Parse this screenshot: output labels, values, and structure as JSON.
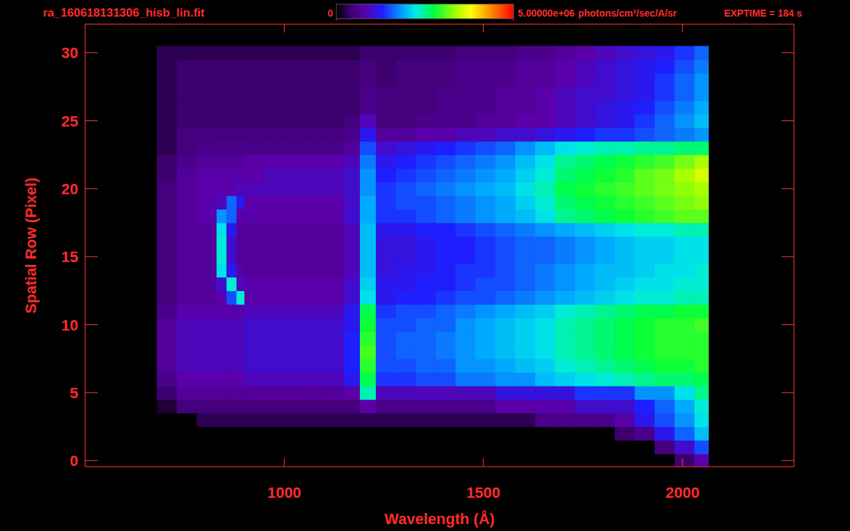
{
  "chart_data": {
    "type": "heatmap",
    "title": "ra_160618131306_hisb_lin.fit",
    "x_label": "Wavelength (Å)",
    "y_label": "Spatial Row (Pixel)",
    "annotations": [
      "EXPTIME = 184 s"
    ],
    "xlim": [
      500,
      2280
    ],
    "ylim": [
      -0.45,
      32.1
    ],
    "xticks": [
      1000,
      1500,
      2000
    ],
    "yticks": [
      0,
      5,
      10,
      15,
      20,
      25,
      30
    ],
    "colorbar": {
      "range": [
        0,
        5000000
      ],
      "ticks": [
        0,
        {
          "value": 5000000,
          "label": "5.00000e+06"
        }
      ],
      "label": "photons/cm²/sec/A/sr"
    },
    "x_bins": [
      680,
      730,
      780,
      830,
      855,
      880,
      900,
      950,
      1000,
      1050,
      1100,
      1150,
      1190,
      1230,
      1280,
      1330,
      1380,
      1430,
      1480,
      1530,
      1580,
      1630,
      1680,
      1730,
      1780,
      1830,
      1880,
      1930,
      1980,
      2030,
      2065
    ],
    "y": [
      0,
      1,
      2,
      3,
      4,
      5,
      6,
      7,
      8,
      9,
      10,
      11,
      12,
      13,
      14,
      15,
      16,
      17,
      18,
      19,
      20,
      21,
      22,
      23,
      24,
      25,
      26,
      27,
      28,
      29,
      30
    ],
    "cells": [
      [
        0,
        0,
        0,
        0,
        0,
        0,
        0,
        0,
        0,
        0,
        0,
        0,
        0,
        0,
        0,
        0,
        0,
        0,
        0,
        0,
        0,
        0,
        0,
        0,
        0,
        0,
        0,
        0,
        400000.0,
        800000.0
      ],
      [
        0,
        0,
        0,
        0,
        0,
        0,
        0,
        0,
        0,
        0,
        0,
        0,
        0,
        0,
        0,
        0,
        0,
        0,
        0,
        0,
        0,
        0,
        0,
        0,
        0,
        0,
        0,
        500000.0,
        1000000.0,
        1500000.0
      ],
      [
        0,
        0,
        0,
        0,
        0,
        0,
        0,
        0,
        0,
        0,
        0,
        0,
        0,
        0,
        0,
        0,
        0,
        0,
        0,
        0,
        0,
        0,
        0,
        0,
        0,
        400000.0,
        600000.0,
        1200000.0,
        1600000.0,
        2000000.0
      ],
      [
        0,
        0,
        300000.0,
        300000.0,
        300000.0,
        300000.0,
        300000.0,
        300000.0,
        300000.0,
        300000.0,
        300000.0,
        300000.0,
        300000.0,
        300000.0,
        300000.0,
        300000.0,
        300000.0,
        300000.0,
        300000.0,
        300000.0,
        300000.0,
        600000.0,
        600000.0,
        600000.0,
        600000.0,
        800000.0,
        1200000.0,
        1500000.0,
        1800000.0,
        2200000.0
      ],
      [
        200000.0,
        500000.0,
        500000.0,
        500000.0,
        500000.0,
        500000.0,
        500000.0,
        500000.0,
        500000.0,
        500000.0,
        500000.0,
        500000.0,
        800000.0,
        600000.0,
        600000.0,
        600000.0,
        600000.0,
        600000.0,
        600000.0,
        800000.0,
        800000.0,
        800000.0,
        800000.0,
        1000000.0,
        1000000.0,
        1000000.0,
        1300000.0,
        1600000.0,
        1900000.0,
        2300000.0
      ],
      [
        400000.0,
        700000.0,
        700000.0,
        700000.0,
        700000.0,
        700000.0,
        700000.0,
        700000.0,
        700000.0,
        700000.0,
        700000.0,
        800000.0,
        2400000.0,
        900000.0,
        900000.0,
        900000.0,
        900000.0,
        900000.0,
        900000.0,
        1100000.0,
        1100000.0,
        1100000.0,
        1100000.0,
        1400000.0,
        1400000.0,
        1400000.0,
        1800000.0,
        1800000.0,
        2200000.0,
        2500000.0
      ],
      [
        600000.0,
        800000.0,
        800000.0,
        800000.0,
        800000.0,
        800000.0,
        900000.0,
        900000.0,
        900000.0,
        900000.0,
        900000.0,
        1200000.0,
        2700000.0,
        1400000.0,
        1400000.0,
        1500000.0,
        1500000.0,
        1700000.0,
        1700000.0,
        1800000.0,
        1800000.0,
        2000000.0,
        2100000.0,
        2200000.0,
        2300000.0,
        2400000.0,
        2500000.0,
        2600000.0,
        2600000.0,
        2700000.0
      ],
      [
        700000.0,
        900000.0,
        900000.0,
        900000.0,
        900000.0,
        900000.0,
        1000000.0,
        1000000.0,
        1000000.0,
        1000000.0,
        1000000.0,
        1300000.0,
        2900000.0,
        1500000.0,
        1500000.0,
        1600000.0,
        1600000.0,
        1800000.0,
        1800000.0,
        1900000.0,
        2000000.0,
        2100000.0,
        2300000.0,
        2400000.0,
        2500000.0,
        2600000.0,
        2700000.0,
        2800000.0,
        2800000.0,
        2900000.0
      ],
      [
        700000.0,
        900000.0,
        900000.0,
        900000.0,
        900000.0,
        900000.0,
        1000000.0,
        1000000.0,
        1000000.0,
        1000000.0,
        1000000.0,
        1300000.0,
        3000000.0,
        1500000.0,
        1600000.0,
        1600000.0,
        1700000.0,
        1800000.0,
        1900000.0,
        2000000.0,
        2100000.0,
        2200000.0,
        2400000.0,
        2500000.0,
        2600000.0,
        2700000.0,
        2800000.0,
        2900000.0,
        2900000.0,
        2900000.0
      ],
      [
        700000.0,
        900000.0,
        900000.0,
        900000.0,
        900000.0,
        900000.0,
        1000000.0,
        1000000.0,
        1000000.0,
        1000000.0,
        1000000.0,
        1300000.0,
        2900000.0,
        1500000.0,
        1600000.0,
        1600000.0,
        1700000.0,
        1800000.0,
        1900000.0,
        2000000.0,
        2100000.0,
        2200000.0,
        2400000.0,
        2500000.0,
        2600000.0,
        2700000.0,
        2800000.0,
        2900000.0,
        2900000.0,
        2900000.0
      ],
      [
        700000.0,
        900000.0,
        900000.0,
        900000.0,
        900000.0,
        900000.0,
        1000000.0,
        1000000.0,
        1000000.0,
        1000000.0,
        1000000.0,
        1200000.0,
        2800000.0,
        1500000.0,
        1500000.0,
        1600000.0,
        1600000.0,
        1800000.0,
        1900000.0,
        2000000.0,
        2100000.0,
        2200000.0,
        2400000.0,
        2500000.0,
        2600000.0,
        2700000.0,
        2800000.0,
        2900000.0,
        2900000.0,
        3000000.0
      ],
      [
        600000.0,
        800000.0,
        800000.0,
        800000.0,
        800000.0,
        800000.0,
        900000.0,
        900000.0,
        900000.0,
        900000.0,
        900000.0,
        1200000.0,
        2700000.0,
        1400000.0,
        1500000.0,
        1500000.0,
        1600000.0,
        1700000.0,
        1800000.0,
        1900000.0,
        2000000.0,
        2100000.0,
        2300000.0,
        2400000.0,
        2500000.0,
        2600000.0,
        2700000.0,
        2700000.0,
        2800000.0,
        2800000.0
      ],
      [
        500000.0,
        700000.0,
        700000.0,
        800000.0,
        1500000.0,
        2300000.0,
        800000.0,
        800000.0,
        800000.0,
        800000.0,
        800000.0,
        1000000.0,
        2200000.0,
        1200000.0,
        1300000.0,
        1300000.0,
        1400000.0,
        1500000.0,
        1500000.0,
        1600000.0,
        1700000.0,
        1800000.0,
        1900000.0,
        2000000.0,
        2100000.0,
        2200000.0,
        2300000.0,
        2300000.0,
        2400000.0,
        2400000.0
      ],
      [
        500000.0,
        700000.0,
        700000.0,
        1000000.0,
        2300000.0,
        900000.0,
        800000.0,
        800000.0,
        800000.0,
        800000.0,
        800000.0,
        1000000.0,
        2100000.0,
        1200000.0,
        1200000.0,
        1300000.0,
        1300000.0,
        1400000.0,
        1500000.0,
        1500000.0,
        1600000.0,
        1700000.0,
        1800000.0,
        1900000.0,
        2000000.0,
        2100000.0,
        2200000.0,
        2200000.0,
        2300000.0,
        2300000.0
      ],
      [
        500000.0,
        700000.0,
        700000.0,
        2200000.0,
        1200000.0,
        800000.0,
        700000.0,
        700000.0,
        700000.0,
        700000.0,
        700000.0,
        900000.0,
        2000000.0,
        1100000.0,
        1200000.0,
        1200000.0,
        1300000.0,
        1400000.0,
        1400000.0,
        1500000.0,
        1600000.0,
        1700000.0,
        1800000.0,
        1900000.0,
        2000000.0,
        2000000.0,
        2100000.0,
        2200000.0,
        2200000.0,
        2300000.0
      ],
      [
        500000.0,
        700000.0,
        700000.0,
        2300000.0,
        1000000.0,
        700000.0,
        700000.0,
        700000.0,
        700000.0,
        700000.0,
        700000.0,
        900000.0,
        2000000.0,
        1100000.0,
        1100000.0,
        1200000.0,
        1300000.0,
        1300000.0,
        1400000.0,
        1500000.0,
        1600000.0,
        1600000.0,
        1700000.0,
        1800000.0,
        1900000.0,
        2000000.0,
        2100000.0,
        2100000.0,
        2200000.0,
        2200000.0
      ],
      [
        500000.0,
        700000.0,
        700000.0,
        2300000.0,
        1000000.0,
        700000.0,
        700000.0,
        700000.0,
        700000.0,
        700000.0,
        700000.0,
        900000.0,
        2000000.0,
        1100000.0,
        1100000.0,
        1200000.0,
        1300000.0,
        1300000.0,
        1400000.0,
        1500000.0,
        1600000.0,
        1600000.0,
        1700000.0,
        1800000.0,
        1900000.0,
        2000000.0,
        2100000.0,
        2100000.0,
        2200000.0,
        2200000.0
      ],
      [
        500000.0,
        700000.0,
        700000.0,
        2200000.0,
        1200000.0,
        700000.0,
        700000.0,
        700000.0,
        700000.0,
        700000.0,
        700000.0,
        900000.0,
        2000000.0,
        1200000.0,
        1200000.0,
        1300000.0,
        1300000.0,
        1400000.0,
        1500000.0,
        1600000.0,
        1700000.0,
        1800000.0,
        1900000.0,
        2000000.0,
        2100000.0,
        2200000.0,
        2300000.0,
        2300000.0,
        2400000.0,
        2400000.0
      ],
      [
        500000.0,
        700000.0,
        800000.0,
        1800000.0,
        1600000.0,
        800000.0,
        800000.0,
        800000.0,
        800000.0,
        800000.0,
        800000.0,
        1000000.0,
        1900000.0,
        1400000.0,
        1400000.0,
        1500000.0,
        1600000.0,
        1700000.0,
        1800000.0,
        1900000.0,
        2000000.0,
        2200000.0,
        2500000.0,
        2600000.0,
        2700000.0,
        2800000.0,
        2900000.0,
        3000000.0,
        3100000.0,
        3100000.0
      ],
      [
        500000.0,
        700000.0,
        800000.0,
        900000.0,
        1600000.0,
        1200000.0,
        800000.0,
        800000.0,
        800000.0,
        800000.0,
        800000.0,
        1000000.0,
        1900000.0,
        1400000.0,
        1500000.0,
        1500000.0,
        1600000.0,
        1700000.0,
        1800000.0,
        1900000.0,
        2100000.0,
        2300000.0,
        2600000.0,
        2700000.0,
        2800000.0,
        2900000.0,
        3000000.0,
        3100000.0,
        3200000.0,
        3300000.0
      ],
      [
        500000.0,
        700000.0,
        800000.0,
        800000.0,
        800000.0,
        900000.0,
        900000.0,
        900000.0,
        900000.0,
        900000.0,
        900000.0,
        1000000.0,
        1800000.0,
        1400000.0,
        1500000.0,
        1600000.0,
        1700000.0,
        1800000.0,
        1900000.0,
        2000000.0,
        2200000.0,
        2400000.0,
        2700000.0,
        2800000.0,
        2900000.0,
        3000000.0,
        3100000.0,
        3200000.0,
        3300000.0,
        3400000.0
      ],
      [
        400000.0,
        700000.0,
        800000.0,
        800000.0,
        800000.0,
        800000.0,
        800000.0,
        900000.0,
        900000.0,
        900000.0,
        900000.0,
        1000000.0,
        1800000.0,
        1300000.0,
        1400000.0,
        1500000.0,
        1600000.0,
        1700000.0,
        1800000.0,
        1900000.0,
        2100000.0,
        2300000.0,
        2600000.0,
        2700000.0,
        2800000.0,
        2900000.0,
        3100000.0,
        3200000.0,
        3400000.0,
        3600000.0
      ],
      [
        400000.0,
        600000.0,
        700000.0,
        700000.0,
        700000.0,
        700000.0,
        800000.0,
        800000.0,
        800000.0,
        800000.0,
        800000.0,
        900000.0,
        1700000.0,
        1200000.0,
        1300000.0,
        1400000.0,
        1500000.0,
        1600000.0,
        1700000.0,
        1800000.0,
        2000000.0,
        2200000.0,
        2500000.0,
        2600000.0,
        2700000.0,
        2800000.0,
        2900000.0,
        3000000.0,
        3200000.0,
        3400000.0
      ],
      [
        300000.0,
        500000.0,
        600000.0,
        600000.0,
        600000.0,
        600000.0,
        600000.0,
        600000.0,
        600000.0,
        600000.0,
        600000.0,
        700000.0,
        1500000.0,
        1000000.0,
        1100000.0,
        1200000.0,
        1300000.0,
        1400000.0,
        1500000.0,
        1600000.0,
        1800000.0,
        2000000.0,
        2200000.0,
        2300000.0,
        2400000.0,
        2400000.0,
        2500000.0,
        2500000.0,
        2600000.0,
        2600000.0
      ],
      [
        300000.0,
        500000.0,
        500000.0,
        500000.0,
        500000.0,
        500000.0,
        500000.0,
        500000.0,
        500000.0,
        500000.0,
        500000.0,
        600000.0,
        1200000.0,
        700000.0,
        700000.0,
        800000.0,
        800000.0,
        900000.0,
        900000.0,
        1000000.0,
        1000000.0,
        1100000.0,
        1200000.0,
        1300000.0,
        1400000.0,
        1400000.0,
        1500000.0,
        1600000.0,
        1700000.0,
        1800000.0
      ],
      [
        300000.0,
        400000.0,
        400000.0,
        400000.0,
        400000.0,
        400000.0,
        400000.0,
        400000.0,
        400000.0,
        400000.0,
        400000.0,
        500000.0,
        900000.0,
        500000.0,
        500000.0,
        600000.0,
        600000.0,
        600000.0,
        700000.0,
        700000.0,
        800000.0,
        800000.0,
        900000.0,
        1000000.0,
        1100000.0,
        1200000.0,
        1400000.0,
        1600000.0,
        1800000.0,
        2000000.0
      ],
      [
        300000.0,
        400000.0,
        400000.0,
        400000.0,
        400000.0,
        400000.0,
        400000.0,
        400000.0,
        400000.0,
        400000.0,
        400000.0,
        400000.0,
        600000.0,
        500000.0,
        500000.0,
        500000.0,
        600000.0,
        600000.0,
        600000.0,
        700000.0,
        700000.0,
        800000.0,
        900000.0,
        1000000.0,
        1100000.0,
        1200000.0,
        1300000.0,
        1500000.0,
        1700000.0,
        1900000.0
      ],
      [
        300000.0,
        400000.0,
        400000.0,
        400000.0,
        400000.0,
        400000.0,
        400000.0,
        400000.0,
        400000.0,
        400000.0,
        400000.0,
        400000.0,
        600000.0,
        500000.0,
        500000.0,
        500000.0,
        600000.0,
        600000.0,
        600000.0,
        700000.0,
        700000.0,
        800000.0,
        900000.0,
        1000000.0,
        1000000.0,
        1100000.0,
        1200000.0,
        1400000.0,
        1600000.0,
        1800000.0
      ],
      [
        300000.0,
        400000.0,
        400000.0,
        400000.0,
        400000.0,
        400000.0,
        400000.0,
        400000.0,
        400000.0,
        400000.0,
        400000.0,
        400000.0,
        500000.0,
        400000.0,
        500000.0,
        500000.0,
        500000.0,
        600000.0,
        600000.0,
        600000.0,
        700000.0,
        700000.0,
        800000.0,
        900000.0,
        1000000.0,
        1100000.0,
        1200000.0,
        1400000.0,
        1600000.0,
        1800000.0
      ],
      [
        300000.0,
        400000.0,
        400000.0,
        400000.0,
        400000.0,
        400000.0,
        400000.0,
        400000.0,
        400000.0,
        400000.0,
        400000.0,
        400000.0,
        500000.0,
        400000.0,
        500000.0,
        500000.0,
        500000.0,
        600000.0,
        600000.0,
        600000.0,
        700000.0,
        700000.0,
        800000.0,
        900000.0,
        1000000.0,
        1100000.0,
        1200000.0,
        1300000.0,
        1500000.0,
        1700000.0
      ],
      [
        300000.0,
        300000.0,
        300000.0,
        300000.0,
        300000.0,
        300000.0,
        300000.0,
        300000.0,
        300000.0,
        300000.0,
        300000.0,
        300000.0,
        400000.0,
        400000.0,
        400000.0,
        400000.0,
        400000.0,
        500000.0,
        500000.0,
        500000.0,
        600000.0,
        600000.0,
        700000.0,
        800000.0,
        900000.0,
        1000000.0,
        1100000.0,
        1200000.0,
        1400000.0,
        1600000.0
      ]
    ]
  }
}
